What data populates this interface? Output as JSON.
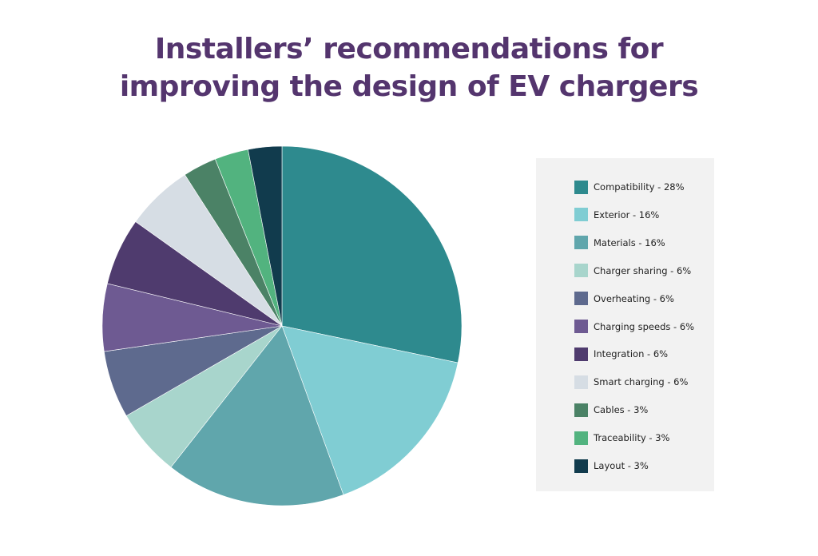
{
  "title": {
    "line1": "Installers’ recommendations for",
    "line2": "improving the design of EV chargers"
  },
  "chart_data": {
    "type": "pie",
    "title": "Installers’ recommendations for improving the design of EV chargers",
    "slices": [
      {
        "label": "Compatibility",
        "value": 28,
        "legend": "Compatibility - 28%",
        "color": "#2e8a8e"
      },
      {
        "label": "Exterior",
        "value": 16,
        "legend": "Exterior - 16%",
        "color": "#80cdd3"
      },
      {
        "label": "Materials",
        "value": 16,
        "legend": "Materials - 16%",
        "color": "#60a6ac"
      },
      {
        "label": "Charger sharing",
        "value": 6,
        "legend": "Charger sharing - 6%",
        "color": "#a8d5cc"
      },
      {
        "label": "Overheating",
        "value": 6,
        "legend": "Overheating - 6%",
        "color": "#5e6a8e"
      },
      {
        "label": "Charging speeds",
        "value": 6,
        "legend": "Charging speeds - 6%",
        "color": "#6e5a92"
      },
      {
        "label": "Integration",
        "value": 6,
        "legend": "Integration - 6%",
        "color": "#4f3b6e"
      },
      {
        "label": "Smart charging",
        "value": 6,
        "legend": "Smart charging - 6%",
        "color": "#d6dde4"
      },
      {
        "label": "Cables",
        "value": 3,
        "legend": "Cables - 3%",
        "color": "#4b8266"
      },
      {
        "label": "Traceability",
        "value": 3,
        "legend": "Traceability - 3%",
        "color": "#52b37f"
      },
      {
        "label": "Layout",
        "value": 3,
        "legend": "Layout - 3%",
        "color": "#113b4d"
      }
    ],
    "legend_placement": "right"
  }
}
